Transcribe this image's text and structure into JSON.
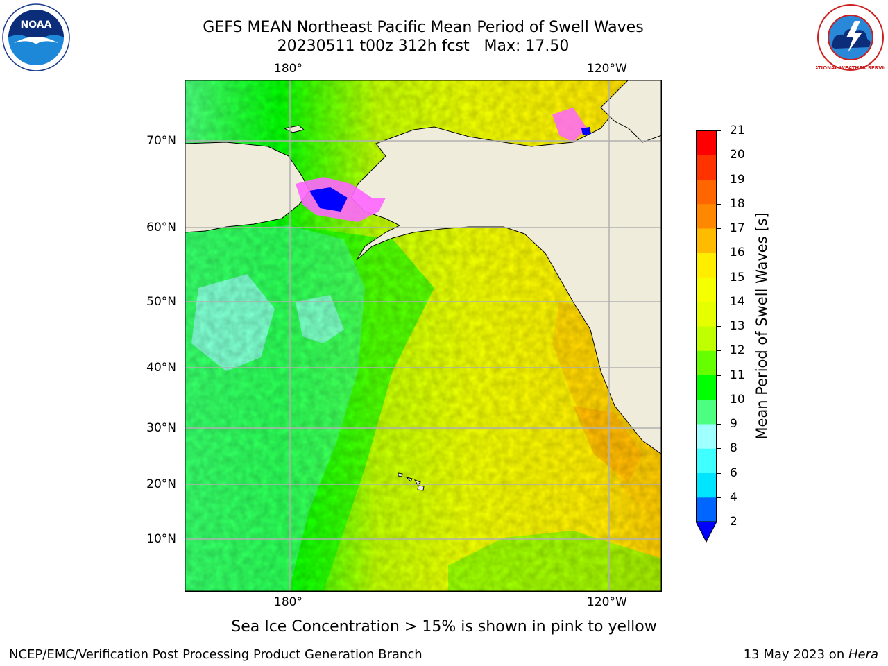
{
  "title": {
    "line1": "GEFS MEAN Northeast Pacific Mean Period of Swell Waves",
    "line2": "20230511 t00z 312h fcst   Max: 17.50"
  },
  "logos": {
    "left": "noaa-logo",
    "left_text": "NOAA",
    "right": "nws-logo",
    "right_text": "NATIONAL WEATHER SERVICE"
  },
  "map": {
    "lon_labels": [
      "180°",
      "120°W"
    ],
    "lat_labels": [
      "70°N",
      "60°N",
      "50°N",
      "40°N",
      "30°N",
      "20°N",
      "10°N"
    ],
    "colors": {
      "land": "#efecdc",
      "grid": "#b0b0b0"
    }
  },
  "colorbar": {
    "title": "Mean Period of Swell Waves [s]",
    "ticks": [
      "2",
      "4",
      "6",
      "8",
      "9",
      "10",
      "11",
      "12",
      "13",
      "14",
      "15",
      "16",
      "17",
      "18",
      "19",
      "20",
      "21"
    ],
    "colors": [
      "#0066ff",
      "#00e5ff",
      "#40ffff",
      "#a0ffff",
      "#4dff80",
      "#00ff00",
      "#66ff00",
      "#c0ff00",
      "#e6ff00",
      "#f5ff00",
      "#ffee00",
      "#ffbb00",
      "#ff8800",
      "#ff6600",
      "#ff3300",
      "#ff0000"
    ],
    "under_color": "#0000ff"
  },
  "note": "Sea Ice Concentration > 15% is shown in pink to yellow",
  "footer": {
    "left": "NCEP/EMC/Verification Post Processing Product Generation Branch",
    "right_date": "13 May 2023 on ",
    "right_host": "Hera"
  }
}
